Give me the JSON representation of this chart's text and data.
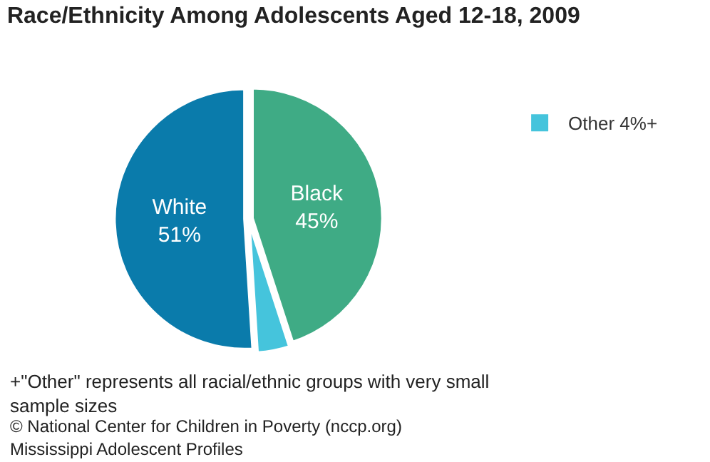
{
  "chart_data": {
    "type": "pie",
    "title": "Race/Ethnicity Among Adolescents Aged 12-18, 2009",
    "categories": [
      "Black",
      "Other",
      "White"
    ],
    "values": [
      45,
      4,
      51
    ],
    "colors": [
      "#3fab85",
      "#45c4dc",
      "#0a7bab"
    ],
    "value_labels": [
      "45%",
      "4%+",
      "51%"
    ],
    "legend": "top right",
    "annotations": [
      "+\"Other\" represents all racial/ethnic groups with very small sample sizes",
      "© National Center for Children in Poverty (nccp.org)",
      "Mississippi Adolescent Profiles"
    ]
  }
}
